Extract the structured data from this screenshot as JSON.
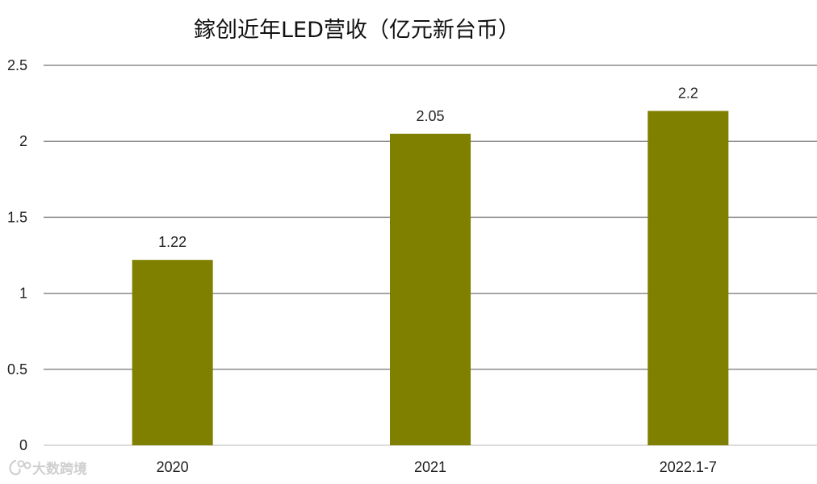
{
  "chart_data": {
    "type": "bar",
    "title": "鎵创近年LED营收（亿元新台币）",
    "categories": [
      "2020",
      "2021",
      "2022.1-7"
    ],
    "values": [
      1.22,
      2.05,
      2.2
    ],
    "data_labels": [
      "1.22",
      "2.05",
      "2.2"
    ],
    "ylim": [
      0,
      2.5
    ],
    "yticks": [
      0,
      0.5,
      1,
      1.5,
      2,
      2.5
    ],
    "ytick_labels": [
      "0",
      "0.5",
      "1",
      "1.5",
      "2",
      "2.5"
    ],
    "xlabel": "",
    "ylabel": "",
    "grid": true,
    "legend": "none",
    "bar_color": "#808000",
    "grid_color": "#8c8c8c"
  },
  "watermark": {
    "text": "大数跨境",
    "icon": "brand-logo-icon"
  }
}
